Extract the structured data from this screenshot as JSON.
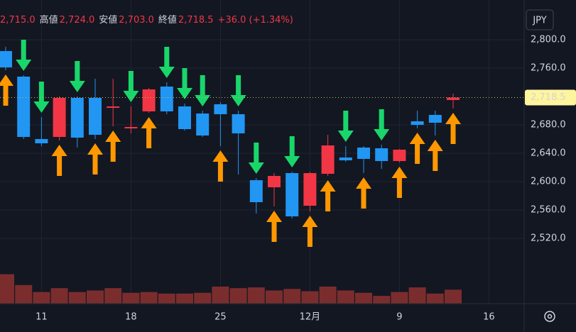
{
  "chart_data": {
    "type": "candlestick",
    "currency": "JPY",
    "header": [
      {
        "value": "2,715.0"
      },
      {
        "label": "高値",
        "value": "2,724.0"
      },
      {
        "label": "安値",
        "value": "2,703.0"
      },
      {
        "label": "終値",
        "value": "2,718.5"
      },
      {
        "value": "+36.0 (+1.34%)"
      }
    ],
    "categories": [
      null,
      null,
      "11",
      null,
      null,
      null,
      null,
      "18",
      null,
      null,
      null,
      null,
      "25",
      null,
      null,
      null,
      null,
      "12月",
      null,
      null,
      null,
      null,
      "9",
      null,
      null,
      null,
      null,
      "16"
    ],
    "open": [
      2784,
      2748,
      2660,
      2663,
      2718,
      2718,
      2704,
      2675,
      2699,
      2734,
      2706,
      2696,
      2709,
      2695,
      2602,
      2592,
      2612,
      2566,
      2611,
      2634,
      2648,
      2647,
      2629,
      2685,
      2694,
      2715,
      null,
      null
    ],
    "high": [
      2790,
      2750,
      2691,
      2720,
      2720,
      2745,
      2745,
      2706,
      2732,
      2740,
      2710,
      2700,
      2712,
      2700,
      2605,
      2612,
      2614,
      2614,
      2666,
      2650,
      2650,
      2652,
      2646,
      2700,
      2700,
      2724,
      null,
      null
    ],
    "low": [
      2757,
      2660,
      2650,
      2658,
      2648,
      2660,
      2678,
      2668,
      2697,
      2695,
      2672,
      2663,
      2650,
      2610,
      2555,
      2565,
      2548,
      2558,
      2608,
      2628,
      2612,
      2618,
      2627,
      2675,
      2665,
      2703,
      null,
      null
    ],
    "close": [
      2761,
      2663,
      2654,
      2718,
      2662,
      2666,
      2706,
      2677,
      2730,
      2699,
      2674,
      2665,
      2695,
      2668,
      2571,
      2608,
      2551,
      2612,
      2651,
      2630,
      2632,
      2629,
      2645,
      2680,
      2683,
      2718.5,
      null,
      null
    ],
    "volume": [
      38,
      24,
      15,
      20,
      15,
      17,
      20,
      14,
      15,
      13,
      13,
      14,
      22,
      20,
      21,
      17,
      19,
      16,
      22,
      17,
      14,
      10,
      15,
      21,
      13,
      18,
      null,
      null
    ],
    "volume_ylim": [
      0,
      55
    ],
    "sell_signals": [
      1,
      2,
      4,
      7,
      9,
      10,
      11,
      13,
      14,
      16,
      19,
      21
    ],
    "buy_signals": [
      0,
      3,
      5,
      6,
      8,
      12,
      15,
      17,
      18,
      20,
      22,
      23,
      24,
      25
    ],
    "last": {
      "value": 2718.5,
      "label": "2,718.5"
    },
    "ylim": [
      2428,
      2856
    ],
    "yticks": [
      {
        "value": 2520,
        "label": "2,520.0"
      },
      {
        "value": 2560,
        "label": "2,560.0"
      },
      {
        "value": 2600,
        "label": "2,600.0"
      },
      {
        "value": 2640,
        "label": "2,640.0"
      },
      {
        "value": 2680,
        "label": "2,680.0"
      },
      {
        "value": 2760,
        "label": "2,760.0"
      },
      {
        "value": 2800,
        "label": "2,800.0"
      }
    ],
    "up_color": "#f23645",
    "down_color": "#2196f3",
    "volume_color": "#7b2d2d",
    "sell_color": "#19d66b",
    "buy_color": "#ff9800",
    "grid": true
  }
}
